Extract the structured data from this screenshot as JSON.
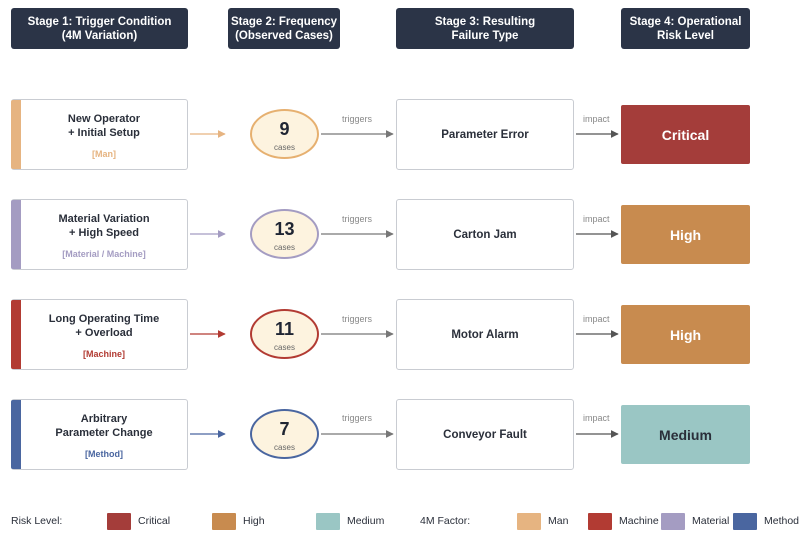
{
  "headers": [
    "Stage 1: Trigger Condition\n(4M Variation)",
    "Stage 2: Frequency\n(Observed Cases)",
    "Stage 3: Resulting\nFailure Type",
    "Stage 4: Operational\nRisk Level"
  ],
  "connector_labels": {
    "triggers": "triggers",
    "impact": "impact"
  },
  "rows": [
    {
      "trigger": "New Operator\n+ Initial Setup",
      "factor": "[Man]",
      "factor_color": "#e6b481",
      "cases": "9",
      "cases_unit": "cases",
      "circle_color": "#e6b070",
      "failure": "Parameter Error",
      "risk": "Critical",
      "risk_color": "#a43d3a",
      "risk_text_color": "#ffffff"
    },
    {
      "trigger": "Material Variation\n+ High Speed",
      "factor": "[Material / Machine]",
      "factor_color": "#a49cc2",
      "cases": "13",
      "cases_unit": "cases",
      "circle_color": "#a49cc2",
      "failure": "Carton Jam",
      "risk": "High",
      "risk_color": "#c88b4f",
      "risk_text_color": "#ffffff"
    },
    {
      "trigger": "Long Operating Time\n+ Overload",
      "factor": "[Machine]",
      "factor_color": "#b23b33",
      "cases": "11",
      "cases_unit": "cases",
      "circle_color": "#b23b33",
      "failure": "Motor Alarm",
      "risk": "High",
      "risk_color": "#c88b4f",
      "risk_text_color": "#ffffff"
    },
    {
      "trigger": "Arbitrary\nParameter Change",
      "factor": "[Method]",
      "factor_color": "#4a66a0",
      "cases": "7",
      "cases_unit": "cases",
      "circle_color": "#4a66a0",
      "failure": "Conveyor Fault",
      "risk": "Medium",
      "risk_color": "#9ac6c4",
      "risk_text_color": "#2a2f3a"
    }
  ],
  "legend": {
    "risk_title": "Risk Level:",
    "risk_items": [
      {
        "label": "Critical",
        "color": "#a43d3a"
      },
      {
        "label": "High",
        "color": "#c88b4f"
      },
      {
        "label": "Medium",
        "color": "#9ac6c4"
      }
    ],
    "factor_title": "4M Factor:",
    "factor_items": [
      {
        "label": "Man",
        "color": "#e6b481"
      },
      {
        "label": "Machine",
        "color": "#b23b33"
      },
      {
        "label": "Material",
        "color": "#a49cc2"
      },
      {
        "label": "Method",
        "color": "#4a66a0"
      }
    ]
  }
}
